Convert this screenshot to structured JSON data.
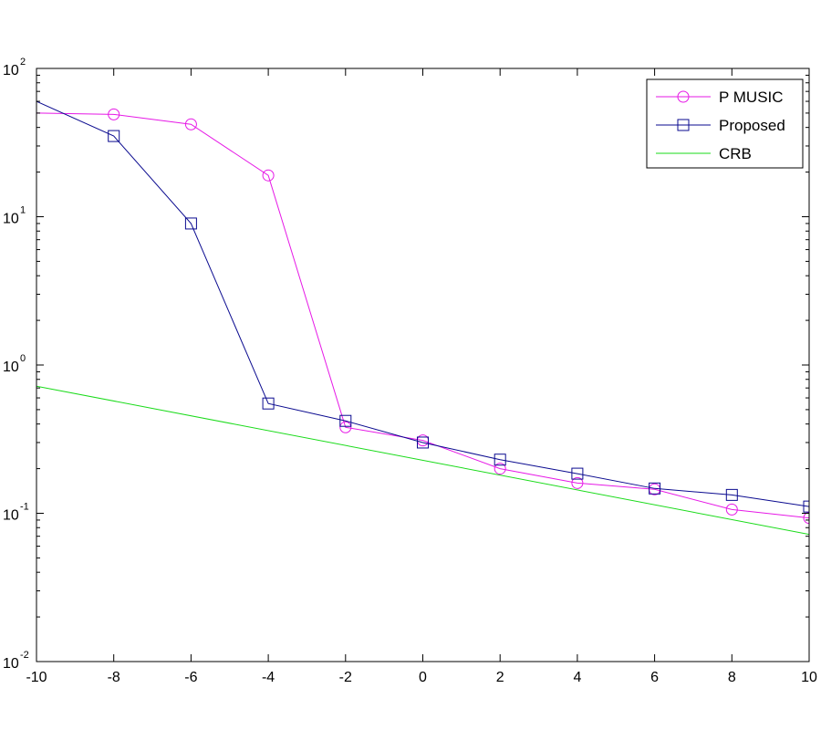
{
  "chart_data": {
    "type": "line",
    "title": "",
    "xlabel": "",
    "ylabel": "",
    "xlim": [
      -10,
      10
    ],
    "ylim": [
      0.01,
      100
    ],
    "yscale": "log",
    "grid": false,
    "legend_position": "top-right",
    "xticks": [
      -10,
      -8,
      -6,
      -4,
      -2,
      0,
      2,
      4,
      6,
      8,
      10
    ],
    "yticks": [
      {
        "value": 0.01,
        "base": "10",
        "exponent": "-2"
      },
      {
        "value": 0.1,
        "base": "10",
        "exponent": "-1"
      },
      {
        "value": 1,
        "base": "10",
        "exponent": "0"
      },
      {
        "value": 10,
        "base": "10",
        "exponent": "1"
      },
      {
        "value": 100,
        "base": "10",
        "exponent": "2"
      }
    ],
    "series": [
      {
        "name": "P MUSIC",
        "color": "#e619e6",
        "marker": "circle",
        "x": [
          -10,
          -8,
          -6,
          -4,
          -2,
          0,
          2,
          4,
          6,
          8,
          10
        ],
        "y": [
          50,
          49,
          42,
          19,
          0.38,
          0.31,
          0.2,
          0.16,
          0.145,
          0.106,
          0.093
        ],
        "marker_from_index": 1
      },
      {
        "name": "Proposed",
        "color": "#0a0a8f",
        "marker": "square",
        "x": [
          -10,
          -8,
          -6,
          -4,
          -2,
          0,
          2,
          4,
          6,
          8,
          10
        ],
        "y": [
          60,
          35,
          9,
          0.55,
          0.42,
          0.3,
          0.23,
          0.185,
          0.147,
          0.133,
          0.111
        ],
        "marker_from_index": 1
      },
      {
        "name": "CRB",
        "color": "#1adb1a",
        "marker": "none",
        "x": [
          -10,
          10
        ],
        "y": [
          0.72,
          0.072
        ]
      }
    ]
  }
}
